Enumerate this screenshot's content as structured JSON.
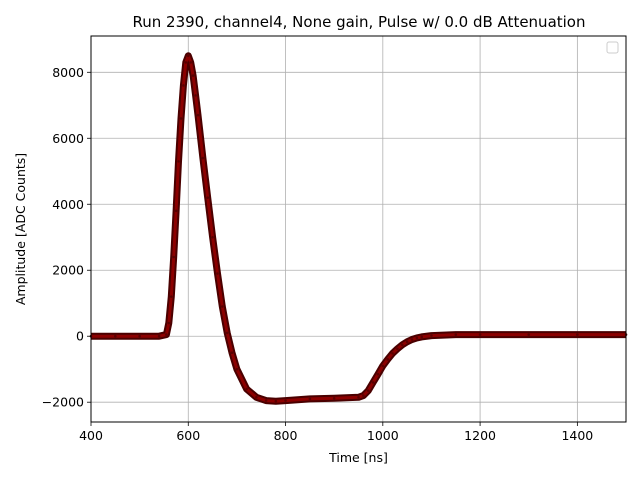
{
  "chart_data": {
    "type": "line",
    "title": "Run 2390, channel4, None gain, Pulse w/ 0.0 dB Attenuation",
    "xlabel": "Time [ns]",
    "ylabel": "Amplitude [ADC Counts]",
    "xlim": [
      400,
      1500
    ],
    "ylim": [
      -2600,
      9100
    ],
    "xticks": [
      "400",
      "600",
      "800",
      "1000",
      "1200",
      "1400"
    ],
    "yticks": [
      "−2000",
      "0",
      "2000",
      "4000",
      "6000",
      "8000"
    ],
    "grid": true,
    "legend": "top-right (empty)",
    "line_color": "#8b0000",
    "band_color": "#4a0000",
    "series": [
      {
        "x": [
          400,
          450,
          500,
          540,
          555,
          560,
          565,
          570,
          575,
          580,
          585,
          590,
          595,
          600,
          605,
          610,
          615,
          620,
          630,
          640,
          650,
          660,
          670,
          680,
          690,
          700,
          720,
          740,
          760,
          780,
          800,
          850,
          900,
          950,
          960,
          970,
          980,
          990,
          1000,
          1010,
          1020,
          1030,
          1040,
          1050,
          1060,
          1070,
          1080,
          1100,
          1150,
          1200,
          1300,
          1400,
          1500
        ],
        "values": [
          0,
          0,
          0,
          0,
          50,
          400,
          1200,
          2400,
          3800,
          5300,
          6600,
          7600,
          8300,
          8500,
          8300,
          7900,
          7300,
          6700,
          5400,
          4200,
          3000,
          1900,
          900,
          100,
          -500,
          -1000,
          -1600,
          -1850,
          -1950,
          -1970,
          -1950,
          -1900,
          -1880,
          -1850,
          -1800,
          -1650,
          -1400,
          -1150,
          -900,
          -700,
          -520,
          -380,
          -260,
          -170,
          -100,
          -50,
          -20,
          20,
          50,
          50,
          50,
          50,
          50
        ]
      }
    ]
  }
}
